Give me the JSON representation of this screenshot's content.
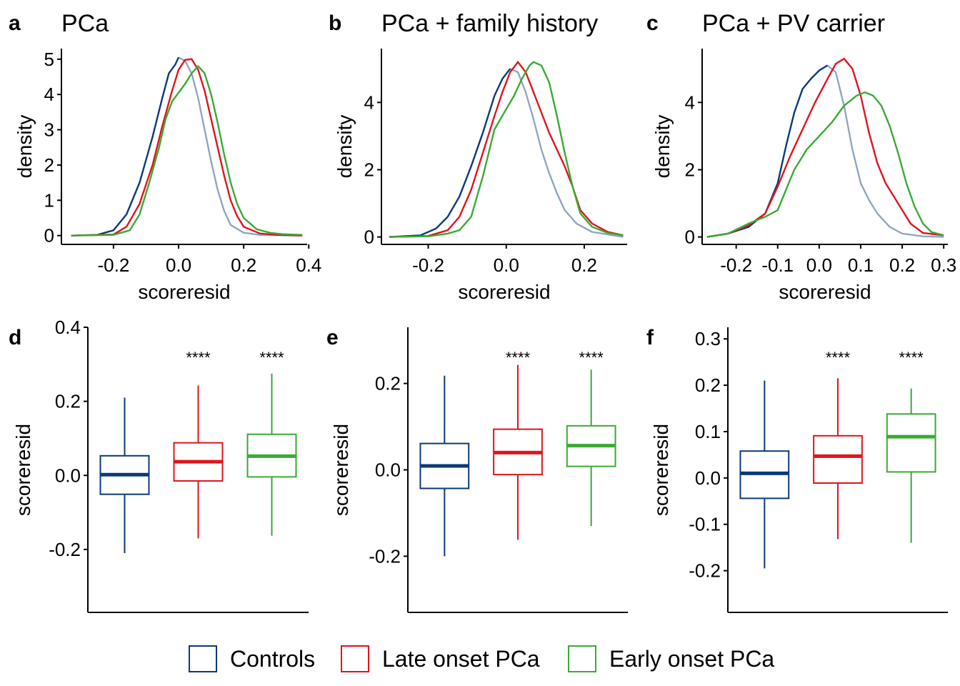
{
  "colors": {
    "Controls": "#0b3a7a",
    "Late onset PCa": "#e0141c",
    "Early onset PCa": "#3aaa35",
    "tail": "#8fa6c4"
  },
  "legend": {
    "items": [
      {
        "label": "Controls",
        "color": "#0b3a7a"
      },
      {
        "label": "Late onset PCa",
        "color": "#e0141c"
      },
      {
        "label": "Early onset PCa",
        "color": "#3aaa35"
      }
    ]
  },
  "chart_data": [
    {
      "panel": "a",
      "title": "PCa",
      "type": "line",
      "xlabel": "scoreresid",
      "ylabel": "density",
      "xlim": [
        -0.36,
        0.395
      ],
      "ylim": [
        -0.25,
        5.3
      ],
      "xticks": [
        -0.2,
        0.0,
        0.2,
        0.4
      ],
      "xtick_labels": [
        "-0.2",
        "0.0",
        "0.2",
        "0.4"
      ],
      "yticks": [
        0,
        1,
        2,
        3,
        4,
        5
      ],
      "ytick_labels": [
        "0",
        "1",
        "2",
        "3",
        "4",
        "5"
      ],
      "series": [
        {
          "name": "Controls",
          "points": [
            [
              -0.33,
              0
            ],
            [
              -0.25,
              0.02
            ],
            [
              -0.2,
              0.15
            ],
            [
              -0.16,
              0.6
            ],
            [
              -0.12,
              1.5
            ],
            [
              -0.08,
              2.8
            ],
            [
              -0.05,
              3.9
            ],
            [
              -0.03,
              4.6
            ],
            [
              -0.01,
              4.85
            ],
            [
              0.0,
              5.05
            ],
            [
              0.02,
              4.95
            ],
            [
              0.04,
              4.6
            ],
            [
              0.06,
              3.9
            ],
            [
              0.08,
              3.0
            ],
            [
              0.1,
              2.1
            ],
            [
              0.12,
              1.3
            ],
            [
              0.14,
              0.7
            ],
            [
              0.16,
              0.3
            ],
            [
              0.2,
              0.08
            ],
            [
              0.25,
              0.02
            ],
            [
              0.38,
              0
            ]
          ]
        },
        {
          "name": "Late onset PCa",
          "points": [
            [
              -0.33,
              0
            ],
            [
              -0.2,
              0.03
            ],
            [
              -0.16,
              0.25
            ],
            [
              -0.12,
              0.9
            ],
            [
              -0.08,
              2.0
            ],
            [
              -0.05,
              3.1
            ],
            [
              -0.02,
              4.1
            ],
            [
              0.0,
              4.7
            ],
            [
              0.02,
              4.98
            ],
            [
              0.04,
              5.0
            ],
            [
              0.06,
              4.7
            ],
            [
              0.08,
              4.1
            ],
            [
              0.1,
              3.3
            ],
            [
              0.12,
              2.5
            ],
            [
              0.14,
              1.7
            ],
            [
              0.16,
              1.0
            ],
            [
              0.18,
              0.55
            ],
            [
              0.2,
              0.25
            ],
            [
              0.25,
              0.06
            ],
            [
              0.3,
              0.02
            ],
            [
              0.38,
              0
            ]
          ]
        },
        {
          "name": "Early onset PCa",
          "points": [
            [
              -0.33,
              0
            ],
            [
              -0.2,
              0.02
            ],
            [
              -0.15,
              0.15
            ],
            [
              -0.12,
              0.6
            ],
            [
              -0.09,
              1.5
            ],
            [
              -0.06,
              2.5
            ],
            [
              -0.04,
              3.3
            ],
            [
              -0.02,
              3.8
            ],
            [
              0.0,
              4.05
            ],
            [
              0.02,
              4.3
            ],
            [
              0.04,
              4.6
            ],
            [
              0.06,
              4.8
            ],
            [
              0.08,
              4.6
            ],
            [
              0.1,
              4.0
            ],
            [
              0.12,
              3.2
            ],
            [
              0.14,
              2.3
            ],
            [
              0.16,
              1.5
            ],
            [
              0.18,
              0.9
            ],
            [
              0.2,
              0.5
            ],
            [
              0.24,
              0.18
            ],
            [
              0.28,
              0.08
            ],
            [
              0.32,
              0.04
            ],
            [
              0.38,
              0.02
            ]
          ]
        }
      ]
    },
    {
      "panel": "b",
      "title": "PCa + family history",
      "type": "line",
      "xlabel": "scoreresid",
      "ylabel": "density",
      "xlim": [
        -0.32,
        0.31
      ],
      "ylim": [
        -0.22,
        5.6
      ],
      "xticks": [
        -0.2,
        0.0,
        0.2
      ],
      "xtick_labels": [
        "-0.2",
        "0.0",
        "0.2"
      ],
      "yticks": [
        0,
        2,
        4
      ],
      "ytick_labels": [
        "0",
        "2",
        "4"
      ],
      "series": [
        {
          "name": "Controls",
          "points": [
            [
              -0.3,
              0
            ],
            [
              -0.22,
              0.05
            ],
            [
              -0.18,
              0.25
            ],
            [
              -0.15,
              0.6
            ],
            [
              -0.12,
              1.2
            ],
            [
              -0.09,
              2.1
            ],
            [
              -0.06,
              3.1
            ],
            [
              -0.03,
              4.2
            ],
            [
              -0.01,
              4.7
            ],
            [
              0.01,
              5.0
            ],
            [
              0.03,
              4.9
            ],
            [
              0.05,
              4.3
            ],
            [
              0.07,
              3.5
            ],
            [
              0.09,
              2.6
            ],
            [
              0.11,
              1.9
            ],
            [
              0.13,
              1.3
            ],
            [
              0.15,
              0.8
            ],
            [
              0.18,
              0.4
            ],
            [
              0.22,
              0.15
            ],
            [
              0.3,
              0
            ]
          ]
        },
        {
          "name": "Late onset PCa",
          "points": [
            [
              -0.3,
              0
            ],
            [
              -0.2,
              0.03
            ],
            [
              -0.15,
              0.2
            ],
            [
              -0.12,
              0.6
            ],
            [
              -0.09,
              1.4
            ],
            [
              -0.06,
              2.5
            ],
            [
              -0.03,
              3.6
            ],
            [
              -0.01,
              4.3
            ],
            [
              0.01,
              4.9
            ],
            [
              0.03,
              5.2
            ],
            [
              0.05,
              4.9
            ],
            [
              0.07,
              4.3
            ],
            [
              0.09,
              3.7
            ],
            [
              0.11,
              3.1
            ],
            [
              0.13,
              2.6
            ],
            [
              0.15,
              2.1
            ],
            [
              0.17,
              1.5
            ],
            [
              0.19,
              0.8
            ],
            [
              0.22,
              0.4
            ],
            [
              0.26,
              0.15
            ],
            [
              0.3,
              0.05
            ]
          ]
        },
        {
          "name": "Early onset PCa",
          "points": [
            [
              -0.3,
              0
            ],
            [
              -0.2,
              0.02
            ],
            [
              -0.15,
              0.1
            ],
            [
              -0.12,
              0.2
            ],
            [
              -0.09,
              0.6
            ],
            [
              -0.06,
              1.8
            ],
            [
              -0.03,
              3.2
            ],
            [
              0.0,
              3.8
            ],
            [
              0.02,
              4.2
            ],
            [
              0.04,
              4.7
            ],
            [
              0.06,
              5.1
            ],
            [
              0.07,
              5.2
            ],
            [
              0.09,
              5.1
            ],
            [
              0.11,
              4.6
            ],
            [
              0.13,
              3.6
            ],
            [
              0.15,
              2.5
            ],
            [
              0.17,
              1.5
            ],
            [
              0.19,
              0.7
            ],
            [
              0.22,
              0.3
            ],
            [
              0.26,
              0.12
            ],
            [
              0.3,
              0.05
            ]
          ]
        }
      ]
    },
    {
      "panel": "c",
      "title": "PCa + PV carrier",
      "type": "line",
      "xlabel": "scoreresid",
      "ylabel": "density",
      "xlim": [
        -0.282,
        0.31
      ],
      "ylim": [
        -0.22,
        5.6
      ],
      "xticks": [
        -0.2,
        -0.1,
        0.0,
        0.1,
        0.2,
        0.3
      ],
      "xtick_labels": [
        "-0.2",
        "-0.1",
        "0.0",
        "0.1",
        "0.2",
        "0.3"
      ],
      "yticks": [
        0,
        2,
        4
      ],
      "ytick_labels": [
        "0",
        "2",
        "4"
      ],
      "series": [
        {
          "name": "Controls",
          "points": [
            [
              -0.27,
              0
            ],
            [
              -0.22,
              0.1
            ],
            [
              -0.17,
              0.3
            ],
            [
              -0.13,
              0.7
            ],
            [
              -0.1,
              1.6
            ],
            [
              -0.08,
              2.7
            ],
            [
              -0.06,
              3.7
            ],
            [
              -0.04,
              4.4
            ],
            [
              -0.02,
              4.7
            ],
            [
              0.0,
              4.95
            ],
            [
              0.02,
              5.1
            ],
            [
              0.04,
              4.9
            ],
            [
              0.06,
              3.9
            ],
            [
              0.08,
              2.6
            ],
            [
              0.1,
              1.6
            ],
            [
              0.12,
              1.1
            ],
            [
              0.14,
              0.7
            ],
            [
              0.17,
              0.3
            ],
            [
              0.2,
              0.1
            ],
            [
              0.25,
              0.02
            ],
            [
              0.3,
              0
            ]
          ]
        },
        {
          "name": "Late onset PCa",
          "points": [
            [
              -0.27,
              0
            ],
            [
              -0.22,
              0.1
            ],
            [
              -0.17,
              0.35
            ],
            [
              -0.13,
              0.7
            ],
            [
              -0.1,
              1.5
            ],
            [
              -0.07,
              2.4
            ],
            [
              -0.04,
              3.2
            ],
            [
              -0.01,
              4.0
            ],
            [
              0.02,
              4.7
            ],
            [
              0.04,
              5.15
            ],
            [
              0.06,
              5.3
            ],
            [
              0.08,
              5.0
            ],
            [
              0.1,
              4.2
            ],
            [
              0.12,
              3.1
            ],
            [
              0.14,
              2.2
            ],
            [
              0.16,
              1.6
            ],
            [
              0.18,
              1.2
            ],
            [
              0.2,
              0.8
            ],
            [
              0.22,
              0.4
            ],
            [
              0.25,
              0.12
            ],
            [
              0.3,
              0.05
            ]
          ]
        },
        {
          "name": "Early onset PCa",
          "points": [
            [
              -0.27,
              0
            ],
            [
              -0.22,
              0.1
            ],
            [
              -0.17,
              0.4
            ],
            [
              -0.13,
              0.6
            ],
            [
              -0.1,
              0.8
            ],
            [
              -0.08,
              1.4
            ],
            [
              -0.06,
              2.0
            ],
            [
              -0.03,
              2.6
            ],
            [
              0.0,
              3.0
            ],
            [
              0.03,
              3.4
            ],
            [
              0.06,
              3.9
            ],
            [
              0.09,
              4.2
            ],
            [
              0.11,
              4.3
            ],
            [
              0.13,
              4.2
            ],
            [
              0.15,
              3.9
            ],
            [
              0.17,
              3.3
            ],
            [
              0.19,
              2.5
            ],
            [
              0.21,
              1.6
            ],
            [
              0.23,
              0.9
            ],
            [
              0.25,
              0.4
            ],
            [
              0.27,
              0.15
            ],
            [
              0.3,
              0.05
            ]
          ]
        }
      ]
    },
    {
      "panel": "d",
      "title": "",
      "type": "box",
      "xlabel": "",
      "ylabel": "scoreresid",
      "ylim": [
        -0.37,
        0.4
      ],
      "yticks": [
        -0.2,
        0.0,
        0.2,
        0.4
      ],
      "ytick_labels": [
        "-0.2",
        "0.0",
        "0.2",
        "0.4"
      ],
      "boxes": [
        {
          "name": "Controls",
          "min": -0.21,
          "q1": -0.051,
          "median": 0.002,
          "q3": 0.053,
          "max": 0.21,
          "annotation": ""
        },
        {
          "name": "Late onset PCa",
          "min": -0.17,
          "q1": -0.015,
          "median": 0.037,
          "q3": 0.088,
          "max": 0.243,
          "annotation": "****"
        },
        {
          "name": "Early onset PCa",
          "min": -0.163,
          "q1": -0.004,
          "median": 0.052,
          "q3": 0.111,
          "max": 0.275,
          "annotation": "****"
        }
      ]
    },
    {
      "panel": "e",
      "title": "",
      "type": "box",
      "xlabel": "",
      "ylabel": "scoreresid",
      "ylim": [
        -0.33,
        0.33
      ],
      "yticks": [
        -0.2,
        0.0,
        0.2
      ],
      "ytick_labels": [
        "-0.2",
        "0.0",
        "0.2"
      ],
      "boxes": [
        {
          "name": "Controls",
          "min": -0.2,
          "q1": -0.043,
          "median": 0.009,
          "q3": 0.061,
          "max": 0.218,
          "annotation": ""
        },
        {
          "name": "Late onset PCa",
          "min": -0.162,
          "q1": -0.011,
          "median": 0.04,
          "q3": 0.094,
          "max": 0.243,
          "annotation": "****"
        },
        {
          "name": "Early onset PCa",
          "min": -0.13,
          "q1": 0.008,
          "median": 0.056,
          "q3": 0.102,
          "max": 0.232,
          "annotation": "****"
        }
      ]
    },
    {
      "panel": "f",
      "title": "",
      "type": "box",
      "xlabel": "",
      "ylabel": "scoreresid",
      "ylim": [
        -0.29,
        0.325
      ],
      "yticks": [
        -0.2,
        -0.1,
        0.0,
        0.1,
        0.2,
        0.3
      ],
      "ytick_labels": [
        "-0.2",
        "-0.1",
        "0.0",
        "0.1",
        "0.2",
        "0.3"
      ],
      "boxes": [
        {
          "name": "Controls",
          "min": -0.195,
          "q1": -0.044,
          "median": 0.01,
          "q3": 0.058,
          "max": 0.21,
          "annotation": ""
        },
        {
          "name": "Late onset PCa",
          "min": -0.132,
          "q1": -0.011,
          "median": 0.047,
          "q3": 0.091,
          "max": 0.215,
          "annotation": "****"
        },
        {
          "name": "Early onset PCa",
          "min": -0.14,
          "q1": 0.013,
          "median": 0.089,
          "q3": 0.138,
          "max": 0.193,
          "annotation": "****"
        }
      ]
    }
  ]
}
